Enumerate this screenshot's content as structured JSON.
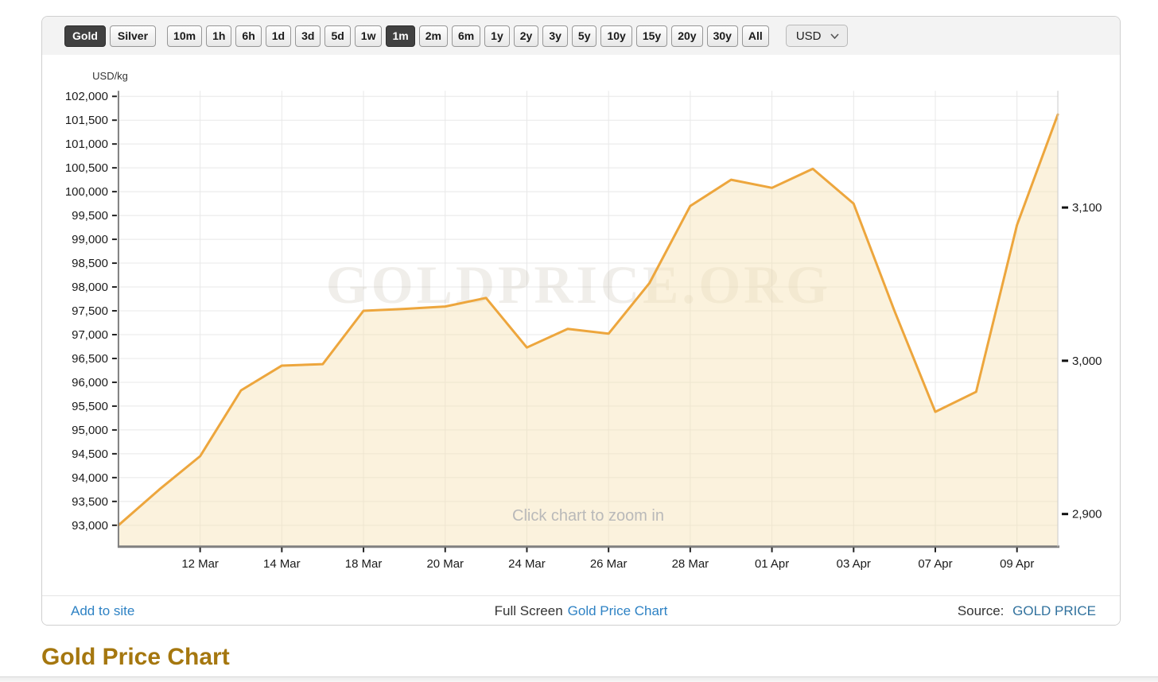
{
  "toolbar": {
    "metal_buttons": [
      {
        "label": "Gold",
        "active": true
      },
      {
        "label": "Silver",
        "active": false
      }
    ],
    "range_buttons": [
      {
        "label": "10m",
        "active": false
      },
      {
        "label": "1h",
        "active": false
      },
      {
        "label": "6h",
        "active": false
      },
      {
        "label": "1d",
        "active": false
      },
      {
        "label": "3d",
        "active": false
      },
      {
        "label": "5d",
        "active": false
      },
      {
        "label": "1w",
        "active": false
      },
      {
        "label": "1m",
        "active": true
      },
      {
        "label": "2m",
        "active": false
      },
      {
        "label": "6m",
        "active": false
      },
      {
        "label": "1y",
        "active": false
      },
      {
        "label": "2y",
        "active": false
      },
      {
        "label": "3y",
        "active": false
      },
      {
        "label": "5y",
        "active": false
      },
      {
        "label": "10y",
        "active": false
      },
      {
        "label": "15y",
        "active": false
      },
      {
        "label": "20y",
        "active": false
      },
      {
        "label": "30y",
        "active": false
      },
      {
        "label": "All",
        "active": false
      }
    ],
    "currency": {
      "value": "USD"
    }
  },
  "chart": {
    "unit_label": "USD/kg",
    "watermark": "GOLDPRICE.ORG",
    "hint": "Click chart to zoom in",
    "colors": {
      "line": "#EDA63D",
      "fill": "#F6E3B4",
      "fill_opacity": 0.45,
      "grid": "#e8e8e8",
      "axis": "#808080",
      "right_edge": "#c9c9c9",
      "tick": "#222222",
      "label": "#1a1a1a",
      "watermark_color": "rgba(160,150,125,0.16)",
      "hint_color": "#b9b9b9"
    }
  },
  "chart_data": {
    "type": "area",
    "title": "Gold Price Chart",
    "xlabel": "",
    "ylabel": "USD/kg",
    "x": [
      "10 Mar",
      "11 Mar",
      "12 Mar",
      "13 Mar",
      "14 Mar",
      "17 Mar",
      "18 Mar",
      "19 Mar",
      "20 Mar",
      "21 Mar",
      "24 Mar",
      "25 Mar",
      "26 Mar",
      "27 Mar",
      "28 Mar",
      "31 Mar",
      "01 Apr",
      "02 Apr",
      "03 Apr",
      "04 Apr",
      "07 Apr",
      "08 Apr",
      "09 Apr",
      "10 Apr"
    ],
    "values": [
      93000,
      93750,
      94450,
      95830,
      96350,
      96380,
      97500,
      97540,
      97590,
      97770,
      96730,
      97120,
      97020,
      98080,
      99700,
      100250,
      100080,
      100480,
      99750,
      97500,
      95380,
      95800,
      99300,
      101620
    ],
    "ylim": [
      93000,
      102000
    ],
    "grid": true,
    "legend": false,
    "y_tick_labels": [
      "93,000",
      "93,500",
      "94,000",
      "94,500",
      "95,000",
      "95,500",
      "96,000",
      "96,500",
      "97,000",
      "97,500",
      "98,000",
      "98,500",
      "99,000",
      "99,500",
      "100,000",
      "100,500",
      "101,000",
      "101,500",
      "102,000"
    ],
    "x_tick_indices": [
      2,
      4,
      6,
      8,
      10,
      12,
      14,
      16,
      18,
      20,
      22
    ],
    "x_tick_labels": [
      "12 Mar",
      "14 Mar",
      "18 Mar",
      "20 Mar",
      "24 Mar",
      "26 Mar",
      "28 Mar",
      "01 Apr",
      "03 Apr",
      "07 Apr",
      "09 Apr"
    ],
    "right_axis_ticks": [
      {
        "label": "2,900",
        "at": 93236
      },
      {
        "label": "3,000",
        "at": 96452
      },
      {
        "label": "3,100",
        "at": 99667
      }
    ]
  },
  "footer": {
    "add_to_site": "Add to site",
    "full_screen_prefix": "Full Screen",
    "full_screen_link": "Gold Price Chart",
    "source_prefix": "Source:",
    "source_link": "GOLD PRICE"
  },
  "page": {
    "heading": "Gold Price Chart",
    "colors": {
      "link_blue": "#2e82c4",
      "source_blue": "#31729e",
      "heading_gold": "#a5770f"
    }
  }
}
